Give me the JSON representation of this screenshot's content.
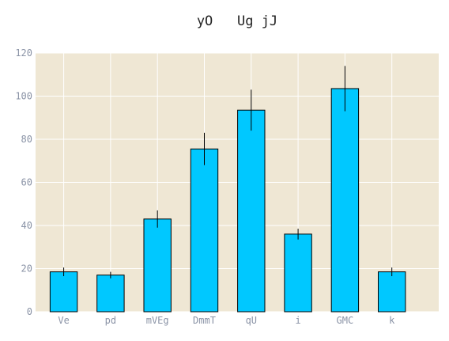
{
  "chart_data": {
    "type": "bar",
    "title": "yO   Ug jJ",
    "xlabel": "",
    "ylabel": "",
    "categories": [
      "Ve",
      "pd",
      "mVEg",
      "DmmT",
      "qU",
      "i",
      "GMC",
      "k"
    ],
    "values": [
      18.5,
      17,
      43,
      75.5,
      93.5,
      36,
      103.5,
      18.5
    ],
    "errors": [
      2,
      1.5,
      4,
      7.5,
      9.5,
      2.5,
      10.5,
      2
    ],
    "ylim": [
      0,
      120
    ],
    "yticks": [
      0,
      20,
      40,
      60,
      80,
      100,
      120
    ],
    "xlim": [
      -0.6,
      8.0
    ],
    "grid": true,
    "legend": "none",
    "colors": {
      "bar_fill": "#00c8ff",
      "bar_edge": "#000000",
      "plot_background": "#efe7d4",
      "grid": "#ffffff",
      "error_bar": "#000000",
      "tick_label": "#8a93a6",
      "title": "#222222"
    }
  }
}
